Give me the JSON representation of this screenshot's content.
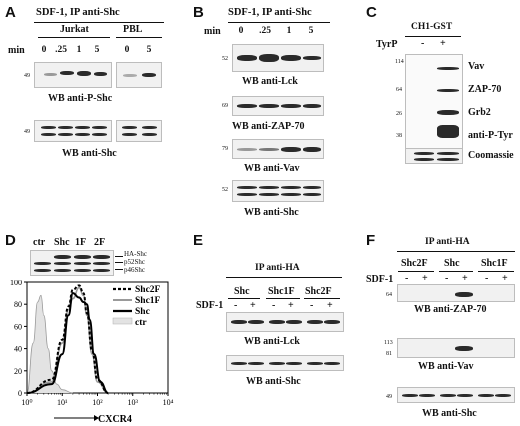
{
  "panels": {
    "A": {
      "letter": "A",
      "title": "SDF-1, IP anti-Shc",
      "group1": "Jurkat",
      "group2": "PBL",
      "min_label": "min",
      "times_jurkat": [
        "0",
        ".25",
        "1",
        "5"
      ],
      "times_pbl": [
        "0",
        "5"
      ],
      "mw_top": "49",
      "mw_bottom": "49",
      "blot1": "WB anti-P-Shc",
      "blot2": "WB anti-Shc"
    },
    "B": {
      "letter": "B",
      "title": "SDF-1, IP anti-Shc",
      "min_label": "min",
      "times": [
        "0",
        ".25",
        "1",
        "5"
      ],
      "blots": [
        {
          "mw": "52",
          "label": "WB anti-Lck"
        },
        {
          "mw": "69",
          "label": "WB anti-ZAP-70"
        },
        {
          "mw": "79",
          "label": "WB anti-Vav"
        },
        {
          "mw": "52",
          "label": "WB anti-Shc"
        }
      ]
    },
    "C": {
      "letter": "C",
      "title": "CH1-GST",
      "tyrp_label": "TyrP",
      "minus": "-",
      "plus": "+",
      "mw": [
        "114",
        "64",
        "26",
        "38"
      ],
      "labels": [
        "Vav",
        "ZAP-70",
        "Grb2",
        "anti-P-Tyr",
        "Coomassie"
      ]
    },
    "D": {
      "letter": "D",
      "lanes": [
        "ctr",
        "Shc",
        "1F",
        "2F"
      ],
      "bands": [
        "HA-Shc",
        "p52Shc",
        "p46Shc"
      ],
      "legend": [
        "Shc2F",
        "Shc1F",
        "Shc",
        "ctr"
      ],
      "y_ticks": [
        "0",
        "20",
        "40",
        "60",
        "80",
        "100"
      ],
      "x_ticks": [
        "10⁰",
        "10¹",
        "10²",
        "10³",
        "10⁴"
      ],
      "xlabel": "CXCR4"
    },
    "E": {
      "letter": "E",
      "title": "IP anti-HA",
      "groups": [
        "Shc",
        "Shc1F",
        "Shc2F"
      ],
      "sdf_label": "SDF-1",
      "signs": [
        "-",
        "+",
        "-",
        "+",
        "-",
        "+"
      ],
      "blot1": "WB anti-Lck",
      "blot2": "WB anti-Shc"
    },
    "F": {
      "letter": "F",
      "title": "IP anti-HA",
      "groups": [
        "Shc2F",
        "Shc",
        "Shc1F"
      ],
      "sdf_label": "SDF-1",
      "signs": [
        "-",
        "+",
        "-",
        "+",
        "-",
        "+"
      ],
      "mw1": "64",
      "mw2a": "113",
      "mw2b": "81",
      "mw3": "49",
      "blot1": "WB anti-ZAP-70",
      "blot2": "WB anti-Vav",
      "blot3": "WB anti-Shc"
    }
  },
  "chart_data": {
    "type": "line",
    "xscale": "log",
    "xlim": [
      1,
      10000
    ],
    "ylim": [
      0,
      100
    ],
    "xlabel": "CXCR4",
    "series": [
      {
        "name": "ctr",
        "style": "filled-gray",
        "x": [
          1,
          1.5,
          2,
          2.5,
          3,
          4,
          5,
          7,
          10,
          20
        ],
        "y": [
          0,
          45,
          82,
          88,
          70,
          40,
          20,
          8,
          3,
          0
        ]
      },
      {
        "name": "Shc",
        "style": "solid-black",
        "x": [
          1,
          5,
          10,
          15,
          20,
          30,
          40,
          50,
          60,
          80,
          120,
          200
        ],
        "y": [
          0,
          8,
          35,
          70,
          90,
          86,
          82,
          80,
          66,
          35,
          10,
          0
        ]
      },
      {
        "name": "Shc1F",
        "style": "solid-gray",
        "x": [
          1,
          5,
          10,
          15,
          20,
          30,
          40,
          50,
          70,
          100,
          200
        ],
        "y": [
          0,
          10,
          45,
          75,
          85,
          95,
          88,
          70,
          35,
          10,
          0
        ]
      },
      {
        "name": "Shc2F",
        "style": "dashed-black",
        "x": [
          1,
          5,
          10,
          15,
          20,
          30,
          40,
          50,
          70,
          100,
          200
        ],
        "y": [
          0,
          12,
          48,
          78,
          93,
          97,
          90,
          72,
          38,
          12,
          0
        ]
      }
    ]
  }
}
